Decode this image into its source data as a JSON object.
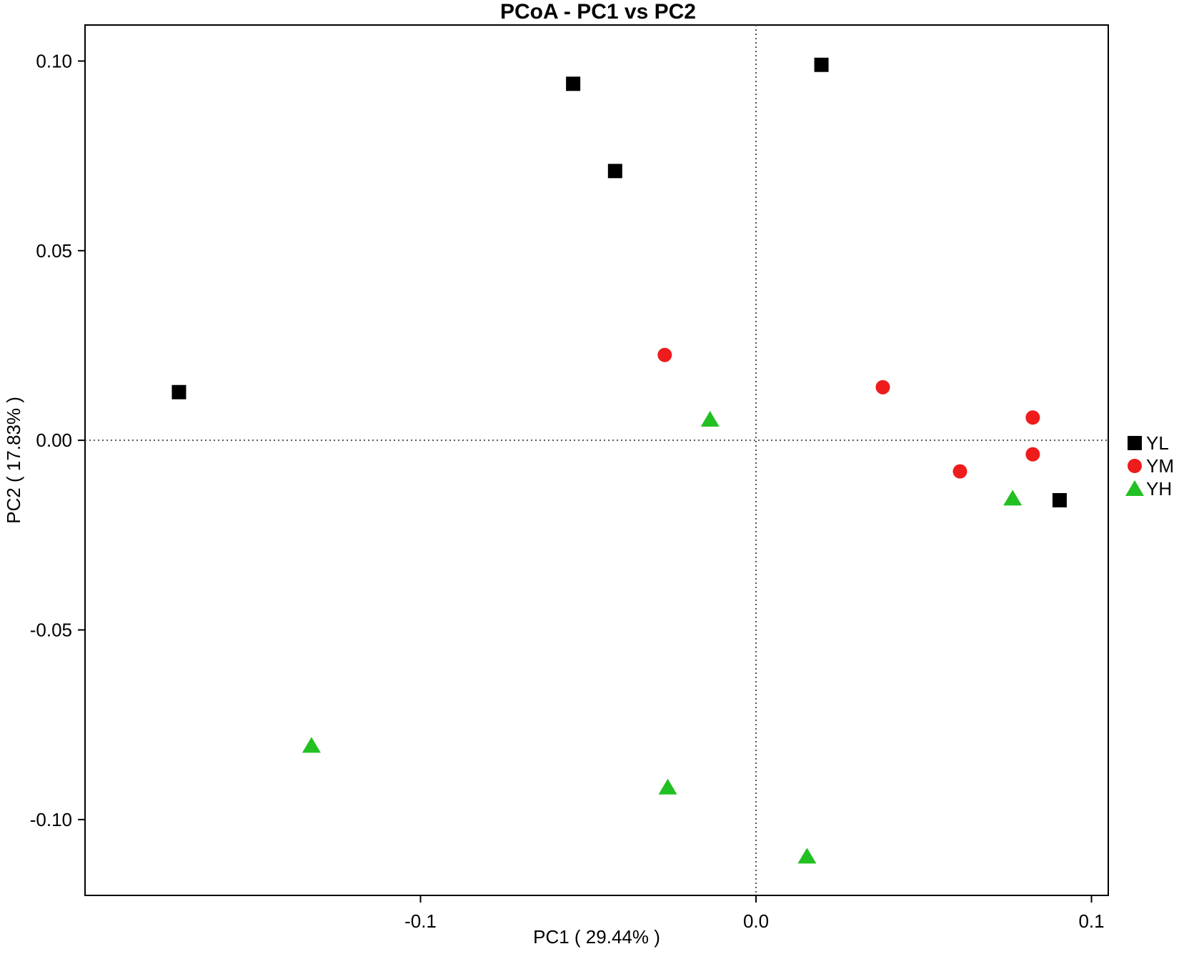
{
  "chart_data": {
    "type": "scatter",
    "title": "PCoA - PC1 vs PC2",
    "xlabel": "PC1 ( 29.44% )",
    "ylabel": "PC2 ( 17.83% )",
    "xlim": [
      -0.2,
      0.105
    ],
    "ylim": [
      -0.12,
      0.1095
    ],
    "x_ticks": [
      {
        "value": -0.1,
        "label": "-0.1"
      },
      {
        "value": 0.0,
        "label": "0.0"
      },
      {
        "value": 0.1,
        "label": "0.1"
      }
    ],
    "y_ticks": [
      {
        "value": 0.1,
        "label": "0.10"
      },
      {
        "value": 0.05,
        "label": "0.05"
      },
      {
        "value": 0.0,
        "label": "0.00"
      },
      {
        "value": -0.05,
        "label": "-0.05"
      },
      {
        "value": -0.1,
        "label": "-0.10"
      }
    ],
    "reference_lines": {
      "x": 0,
      "y": 0,
      "style": "dotted"
    },
    "grid": false,
    "legend_position": "right",
    "series": [
      {
        "name": "YL",
        "marker": "square",
        "color": "#000000",
        "points": [
          {
            "x": -0.172,
            "y": 0.0127
          },
          {
            "x": -0.0545,
            "y": 0.094
          },
          {
            "x": -0.042,
            "y": 0.071
          },
          {
            "x": 0.0195,
            "y": 0.099
          },
          {
            "x": 0.0905,
            "y": -0.0158
          }
        ]
      },
      {
        "name": "YM",
        "marker": "circle",
        "color": "#ee1c1c",
        "points": [
          {
            "x": -0.0272,
            "y": 0.0225
          },
          {
            "x": 0.0378,
            "y": 0.014
          },
          {
            "x": 0.0825,
            "y": 0.006
          },
          {
            "x": 0.0825,
            "y": -0.0037
          },
          {
            "x": 0.0608,
            "y": -0.0082
          }
        ]
      },
      {
        "name": "YH",
        "marker": "triangle",
        "color": "#22c022",
        "points": [
          {
            "x": -0.0137,
            "y": 0.0055
          },
          {
            "x": 0.0765,
            "y": -0.0153
          },
          {
            "x": -0.1325,
            "y": -0.0805
          },
          {
            "x": -0.0263,
            "y": -0.0915
          },
          {
            "x": 0.0152,
            "y": -0.1097
          }
        ]
      }
    ]
  }
}
